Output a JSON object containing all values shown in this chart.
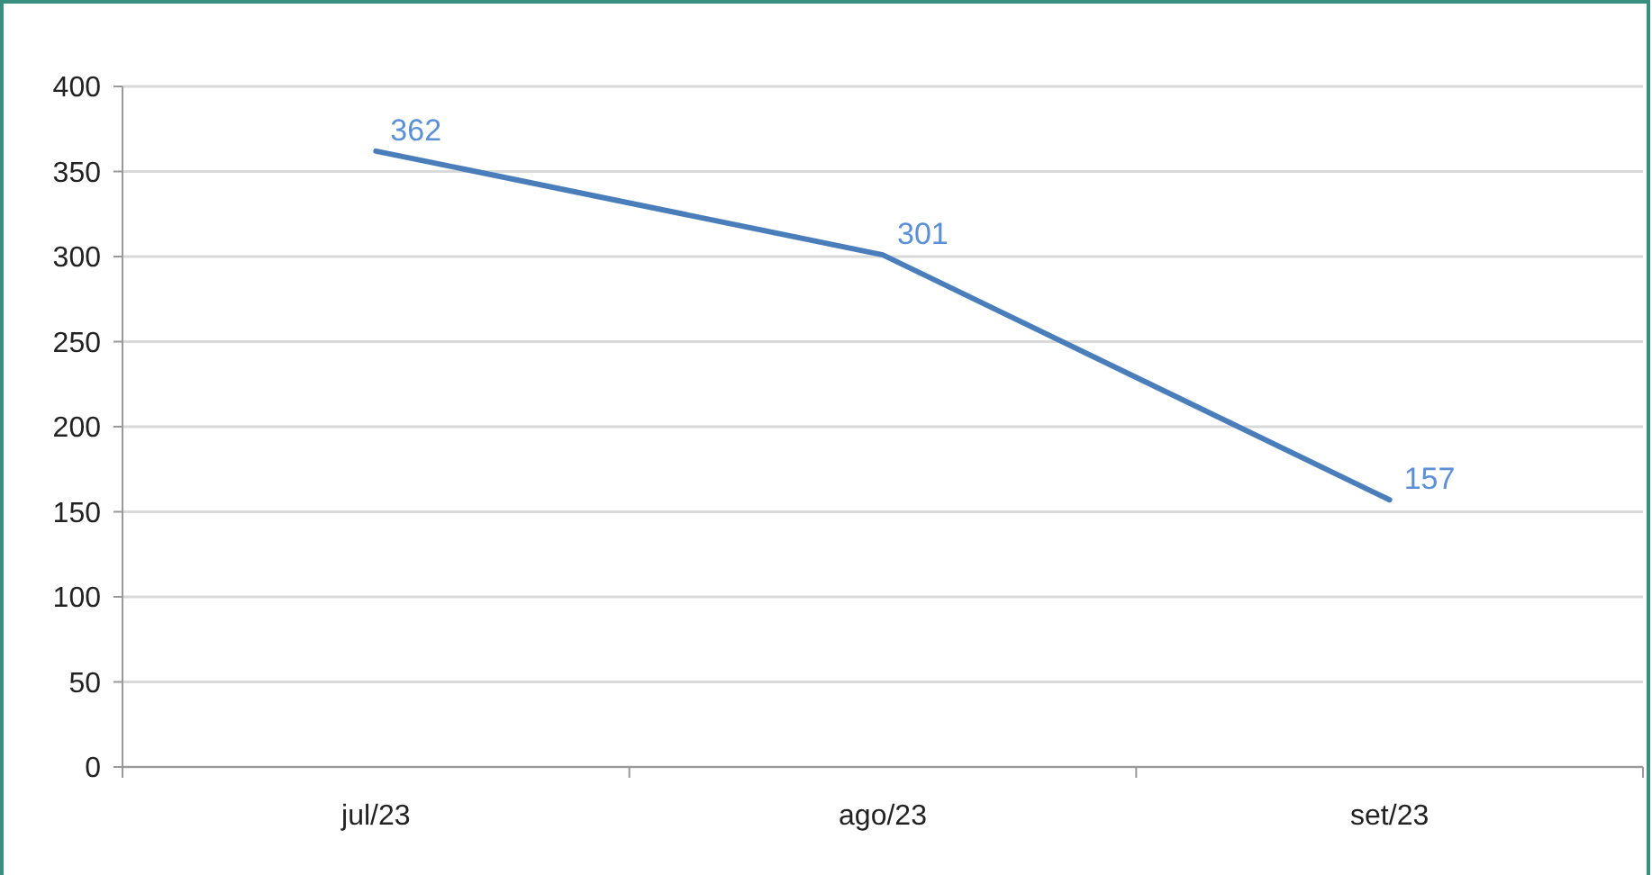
{
  "chart_data": {
    "type": "line",
    "categories": [
      "jul/23",
      "ago/23",
      "set/23"
    ],
    "series": [
      {
        "color": "#4a7ebb",
        "values": [
          362,
          301,
          157
        ]
      }
    ],
    "ylim": [
      0,
      400
    ],
    "yticks": [
      0,
      50,
      100,
      150,
      200,
      250,
      300,
      350,
      400
    ],
    "grid": "y",
    "data_labels": true,
    "marker": "none",
    "line_style": "solid"
  }
}
